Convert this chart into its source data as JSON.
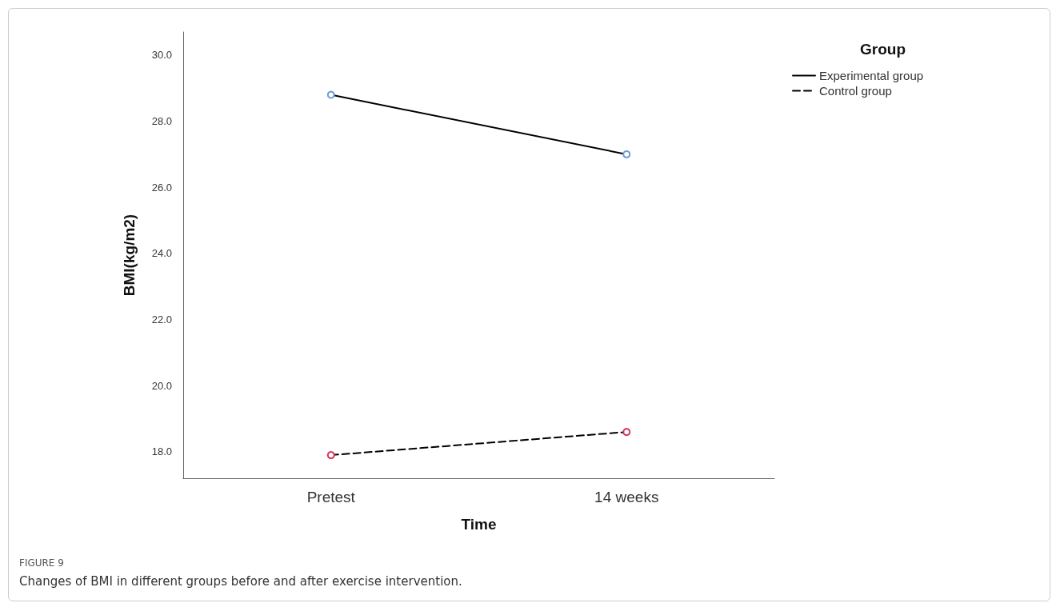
{
  "chart_data": {
    "type": "line",
    "xlabel": "Time",
    "ylabel": "BMI(kg/m2)",
    "legend_title": "Group",
    "categories": [
      "Pretest",
      "14 weeks"
    ],
    "series": [
      {
        "name": "Experimental group",
        "color": "#000000",
        "colors": [
          "#6a9ad8",
          "#6a9ad8"
        ],
        "line_style": "solid",
        "values": [
          28.8,
          27.0
        ]
      },
      {
        "name": "Control group",
        "color": "#000000",
        "colors": [
          "#d8345a",
          "#d8345a"
        ],
        "line_style": "dashed",
        "values": [
          17.9,
          18.6
        ]
      }
    ],
    "ylim": [
      17.2,
      30.7
    ],
    "yticks": [
      {
        "value": 18,
        "label": "18.0"
      },
      {
        "value": 20,
        "label": "20.0"
      },
      {
        "value": 22,
        "label": "22.0"
      },
      {
        "value": 24,
        "label": "24.0"
      },
      {
        "value": 26,
        "label": "26.0"
      },
      {
        "value": 28,
        "label": "28.0"
      },
      {
        "value": 30,
        "label": "30.0"
      }
    ],
    "marker": "circle",
    "grid": false,
    "legend": "top right",
    "annotations": [
      "FIGURE 9",
      "Changes of BMI in different groups before and after exercise intervention."
    ]
  }
}
